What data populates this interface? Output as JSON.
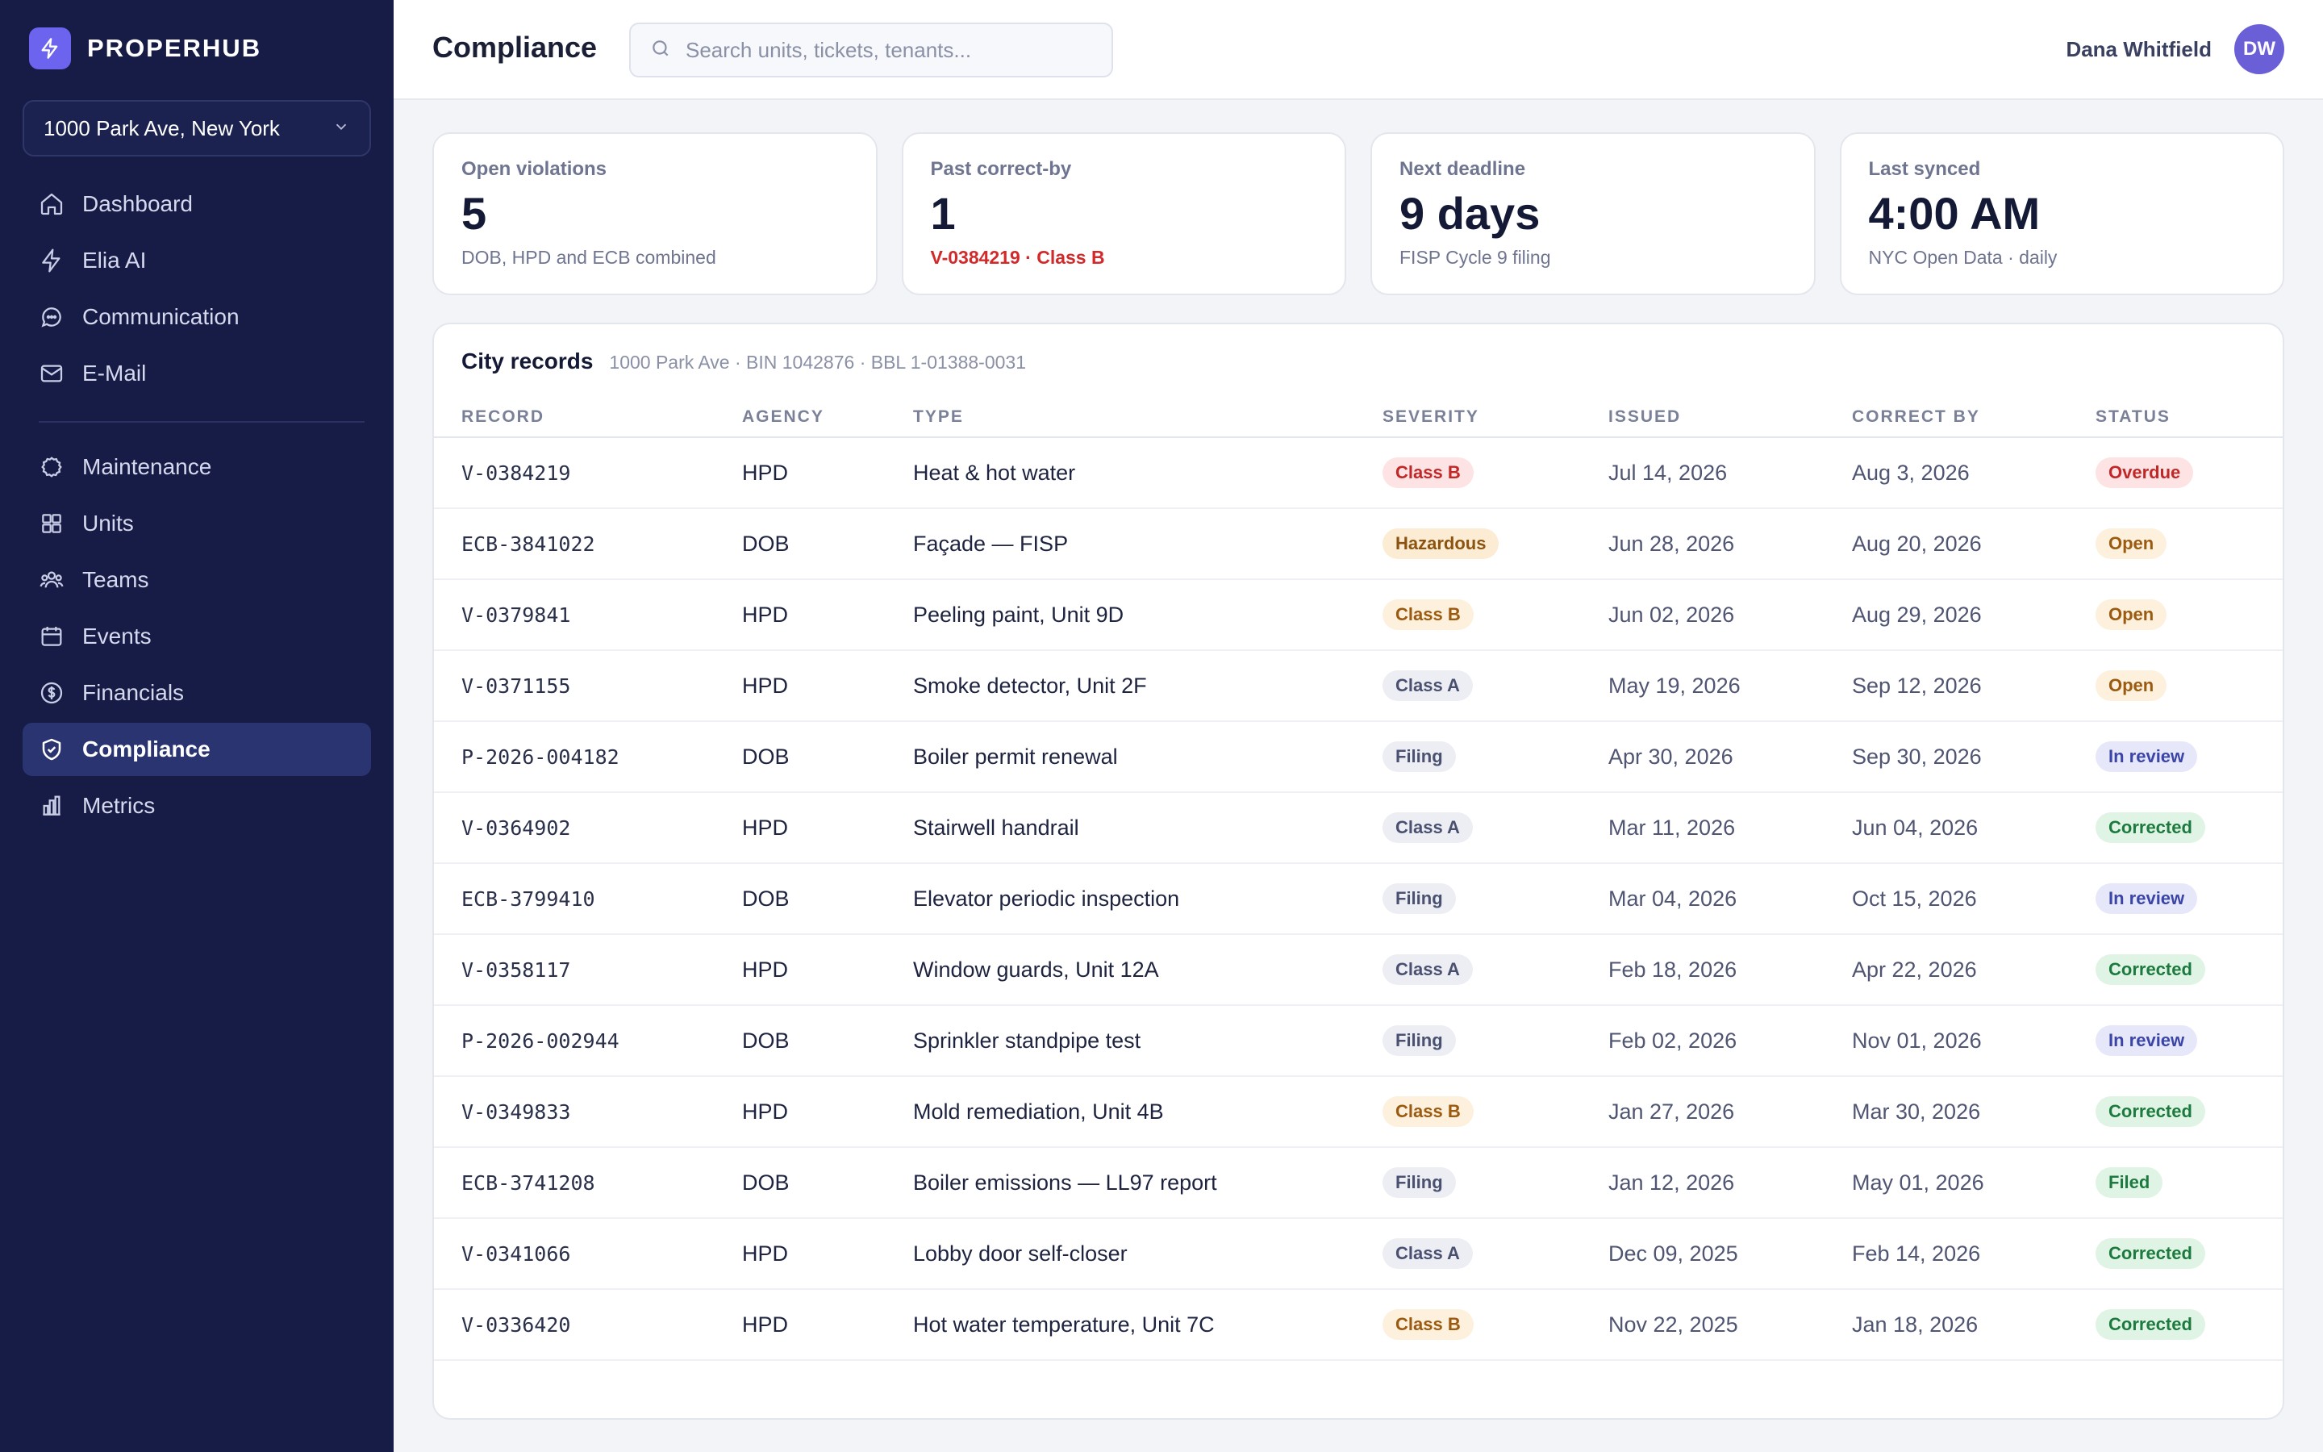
{
  "brand": {
    "name": "PROPERHUB"
  },
  "property": {
    "selected": "1000 Park Ave, New York"
  },
  "nav": {
    "primary": [
      {
        "key": "dashboard",
        "label": "Dashboard",
        "icon": "home-icon"
      },
      {
        "key": "elia-ai",
        "label": "Elia AI",
        "icon": "bolt-icon"
      },
      {
        "key": "communication",
        "label": "Communication",
        "icon": "chat-icon"
      },
      {
        "key": "email",
        "label": "E-Mail",
        "icon": "mail-icon"
      }
    ],
    "secondary": [
      {
        "key": "maintenance",
        "label": "Maintenance",
        "icon": "gear-icon"
      },
      {
        "key": "units",
        "label": "Units",
        "icon": "grid-icon"
      },
      {
        "key": "teams",
        "label": "Teams",
        "icon": "users-icon"
      },
      {
        "key": "events",
        "label": "Events",
        "icon": "calendar-icon"
      },
      {
        "key": "financials",
        "label": "Financials",
        "icon": "dollar-icon"
      },
      {
        "key": "compliance",
        "label": "Compliance",
        "icon": "shield-icon",
        "active": true
      },
      {
        "key": "metrics",
        "label": "Metrics",
        "icon": "bar-chart-icon"
      }
    ]
  },
  "header": {
    "title": "Compliance",
    "search_placeholder": "Search units, tickets, tenants...",
    "user_name": "Dana Whitfield",
    "user_initials": "DW"
  },
  "stats": [
    {
      "label": "Open violations",
      "value": "5",
      "sub": "DOB, HPD and ECB combined",
      "alert": false
    },
    {
      "label": "Past correct-by",
      "value": "1",
      "sub": "V-0384219 · Class B",
      "alert": true
    },
    {
      "label": "Next deadline",
      "value": "9 days",
      "sub": "FISP Cycle 9 filing",
      "alert": false
    },
    {
      "label": "Last synced",
      "value": "4:00 AM",
      "sub": "NYC Open Data · daily",
      "alert": false
    }
  ],
  "records": {
    "title": "City records",
    "meta": "1000 Park Ave · BIN 1042876 · BBL 1-01388-0031",
    "columns": [
      "RECORD",
      "AGENCY",
      "TYPE",
      "SEVERITY",
      "ISSUED",
      "CORRECT BY",
      "STATUS"
    ],
    "rows": [
      {
        "record": "V-0384219",
        "agency": "HPD",
        "type": "Heat & hot water",
        "severity": "Class B",
        "sev_style": "sev-classb",
        "issued": "Jul 14, 2026",
        "correct_by": "Aug 3, 2026",
        "status": "Overdue",
        "status_style": "st-overdue"
      },
      {
        "record": "ECB-3841022",
        "agency": "DOB",
        "type": "Façade — FISP",
        "severity": "Hazardous",
        "sev_style": "sev-haz",
        "issued": "Jun 28, 2026",
        "correct_by": "Aug 20, 2026",
        "status": "Open",
        "status_style": "st-open"
      },
      {
        "record": "V-0379841",
        "agency": "HPD",
        "type": "Peeling paint, Unit 9D",
        "severity": "Class B",
        "sev_style": "sev-classb-soft",
        "issued": "Jun 02, 2026",
        "correct_by": "Aug 29, 2026",
        "status": "Open",
        "status_style": "st-open"
      },
      {
        "record": "V-0371155",
        "agency": "HPD",
        "type": "Smoke detector, Unit 2F",
        "severity": "Class A",
        "sev_style": "sev-classa",
        "issued": "May 19, 2026",
        "correct_by": "Sep 12, 2026",
        "status": "Open",
        "status_style": "st-open"
      },
      {
        "record": "P-2026-004182",
        "agency": "DOB",
        "type": "Boiler permit renewal",
        "severity": "Filing",
        "sev_style": "sev-filing",
        "issued": "Apr 30, 2026",
        "correct_by": "Sep 30, 2026",
        "status": "In review",
        "status_style": "st-review"
      },
      {
        "record": "V-0364902",
        "agency": "HPD",
        "type": "Stairwell handrail",
        "severity": "Class A",
        "sev_style": "sev-classa",
        "issued": "Mar 11, 2026",
        "correct_by": "Jun 04, 2026",
        "status": "Corrected",
        "status_style": "st-corrected"
      },
      {
        "record": "ECB-3799410",
        "agency": "DOB",
        "type": "Elevator periodic inspection",
        "severity": "Filing",
        "sev_style": "sev-filing",
        "issued": "Mar 04, 2026",
        "correct_by": "Oct 15, 2026",
        "status": "In review",
        "status_style": "st-review"
      },
      {
        "record": "V-0358117",
        "agency": "HPD",
        "type": "Window guards, Unit 12A",
        "severity": "Class A",
        "sev_style": "sev-classa",
        "issued": "Feb 18, 2026",
        "correct_by": "Apr 22, 2026",
        "status": "Corrected",
        "status_style": "st-corrected"
      },
      {
        "record": "P-2026-002944",
        "agency": "DOB",
        "type": "Sprinkler standpipe test",
        "severity": "Filing",
        "sev_style": "sev-filing",
        "issued": "Feb 02, 2026",
        "correct_by": "Nov 01, 2026",
        "status": "In review",
        "status_style": "st-review"
      },
      {
        "record": "V-0349833",
        "agency": "HPD",
        "type": "Mold remediation, Unit 4B",
        "severity": "Class B",
        "sev_style": "sev-classb-soft",
        "issued": "Jan 27, 2026",
        "correct_by": "Mar 30, 2026",
        "status": "Corrected",
        "status_style": "st-corrected"
      },
      {
        "record": "ECB-3741208",
        "agency": "DOB",
        "type": "Boiler emissions — LL97 report",
        "severity": "Filing",
        "sev_style": "sev-filing",
        "issued": "Jan 12, 2026",
        "correct_by": "May 01, 2026",
        "status": "Filed",
        "status_style": "st-filed"
      },
      {
        "record": "V-0341066",
        "agency": "HPD",
        "type": "Lobby door self-closer",
        "severity": "Class A",
        "sev_style": "sev-classa",
        "issued": "Dec 09, 2025",
        "correct_by": "Feb 14, 2026",
        "status": "Corrected",
        "status_style": "st-corrected"
      },
      {
        "record": "V-0336420",
        "agency": "HPD",
        "type": "Hot water temperature, Unit 7C",
        "severity": "Class B",
        "sev_style": "sev-classb-soft",
        "issued": "Nov 22, 2025",
        "correct_by": "Jan 18, 2026",
        "status": "Corrected",
        "status_style": "st-corrected"
      }
    ]
  }
}
